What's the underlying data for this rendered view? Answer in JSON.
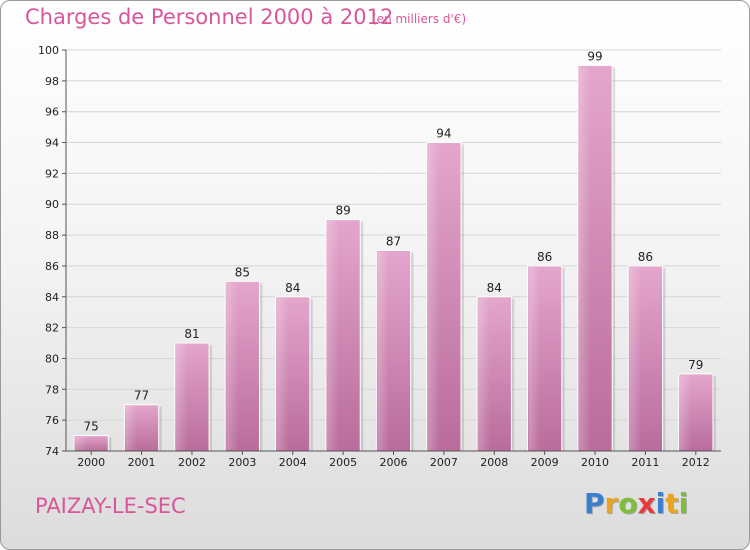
{
  "chart_data": {
    "type": "bar",
    "title": "Charges de Personnel 2000 à 2012",
    "subtitle": "(en milliers d'€)",
    "categories": [
      "2000",
      "2001",
      "2002",
      "2003",
      "2004",
      "2005",
      "2006",
      "2007",
      "2008",
      "2009",
      "2010",
      "2011",
      "2012"
    ],
    "values": [
      75,
      77,
      81,
      85,
      84,
      89,
      87,
      94,
      84,
      86,
      99,
      86,
      79
    ],
    "ylim": [
      74,
      100
    ],
    "yticks": [
      74,
      76,
      78,
      80,
      82,
      84,
      86,
      88,
      90,
      92,
      94,
      96,
      98,
      100
    ],
    "grid": true,
    "bar_color": "#d98cba"
  },
  "footer": {
    "commune": "PAIZAY-LE-SEC",
    "logo_letters": [
      "P",
      "r",
      "o",
      "x",
      "i",
      "t",
      "i"
    ],
    "logo_colors": [
      "#3a7fcf",
      "#e8a524",
      "#7cbf3a",
      "#e83a3a",
      "#3a7fcf",
      "#e8a524",
      "#7cbf3a"
    ]
  }
}
